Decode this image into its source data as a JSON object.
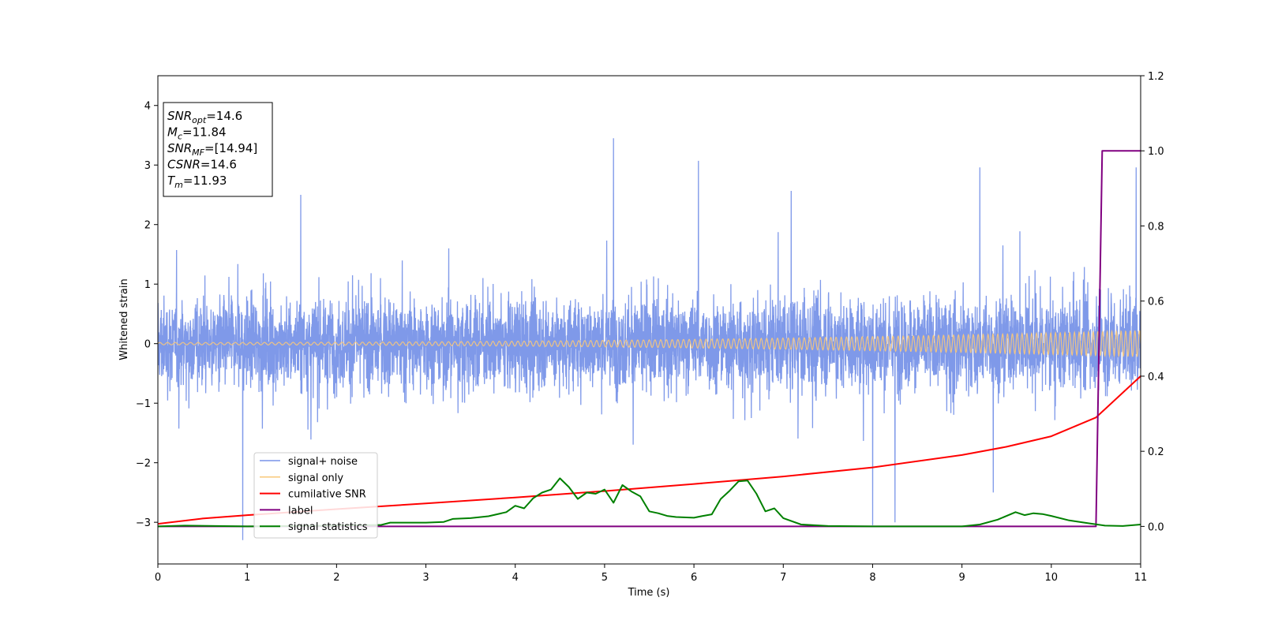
{
  "chart_data": {
    "type": "line",
    "title": "",
    "xlabel": "Time (s)",
    "ylabel": "Whitened strain",
    "y2label": "",
    "xlim": [
      0,
      11
    ],
    "ylim": [
      -3.7,
      4.5
    ],
    "y2lim": [
      -0.1,
      1.2
    ],
    "xticks": [
      0,
      1,
      2,
      3,
      4,
      5,
      6,
      7,
      8,
      9,
      10,
      11
    ],
    "xtick_labels": [
      "0",
      "1",
      "2",
      "3",
      "4",
      "5",
      "6",
      "7",
      "8",
      "9",
      "10",
      "11"
    ],
    "yticks": [
      -3,
      -2,
      -1,
      0,
      1,
      2,
      3,
      4
    ],
    "ytick_labels": [
      "−3",
      "−2",
      "−1",
      "0",
      "1",
      "2",
      "3",
      "4"
    ],
    "y2ticks": [
      0.0,
      0.2,
      0.4,
      0.6,
      0.8,
      1.0,
      1.2
    ],
    "y2tick_labels": [
      "0.0",
      "0.2",
      "0.4",
      "0.6",
      "0.8",
      "1.0",
      "1.2"
    ],
    "grid": false,
    "legend_position": "lower-left",
    "info_box": [
      {
        "base": "SNR",
        "sub": "opt",
        "rest": "=14.6"
      },
      {
        "base": "M",
        "sub": "c",
        "rest": "=11.84"
      },
      {
        "base": "SNR",
        "sub": "MF",
        "rest": "=[14.94]"
      },
      {
        "base": "CSNR",
        "sub": "",
        "rest": "=14.6"
      },
      {
        "base": "T",
        "sub": "m",
        "rest": "=11.93"
      }
    ],
    "series": [
      {
        "name": "signal+ noise",
        "color": "#7893e8",
        "axis": "left",
        "kind": "noise",
        "noise_std": 0.75,
        "spikes": [
          [
            0.95,
            -3.3
          ],
          [
            5.1,
            3.45
          ],
          [
            6.05,
            3.07
          ],
          [
            8.0,
            -3.05
          ],
          [
            8.25,
            -3.0
          ],
          [
            9.2,
            2.96
          ],
          [
            10.95,
            2.96
          ],
          [
            9.35,
            -2.5
          ],
          [
            1.6,
            2.5
          ]
        ]
      },
      {
        "name": "signal only",
        "color": "#f9c87a",
        "axis": "left",
        "kind": "chirp",
        "amplitude_start": 0.02,
        "amplitude_end": 0.22,
        "cycles_start_per_s": 11.5,
        "cycles_end_per_s": 15.5
      },
      {
        "name": "cumilative SNR",
        "color": "#ff0000",
        "axis": "right",
        "x": [
          0,
          0.5,
          1,
          2,
          3,
          4,
          5,
          6,
          7,
          8,
          9,
          9.5,
          10,
          10.5,
          11
        ],
        "y": [
          0.007,
          0.021,
          0.03,
          0.046,
          0.061,
          0.077,
          0.094,
          0.113,
          0.133,
          0.157,
          0.19,
          0.212,
          0.24,
          0.29,
          0.4
        ]
      },
      {
        "name": "label",
        "color": "#800080",
        "axis": "right",
        "x": [
          0,
          10.5,
          10.57,
          11
        ],
        "y": [
          0.0,
          0.0,
          1.0,
          1.0
        ]
      },
      {
        "name": "signal statistics",
        "color": "#008000",
        "axis": "right",
        "x": [
          0,
          0.3,
          1,
          1.5,
          2,
          2.5,
          2.6,
          3,
          3.2,
          3.3,
          3.5,
          3.7,
          3.9,
          4.0,
          4.1,
          4.2,
          4.3,
          4.4,
          4.5,
          4.6,
          4.7,
          4.8,
          4.9,
          5.0,
          5.1,
          5.2,
          5.3,
          5.4,
          5.5,
          5.6,
          5.7,
          5.8,
          6.0,
          6.1,
          6.2,
          6.3,
          6.4,
          6.5,
          6.6,
          6.7,
          6.8,
          6.9,
          7.0,
          7.2,
          7.5,
          8.0,
          8.5,
          9.0,
          9.2,
          9.4,
          9.6,
          9.7,
          9.8,
          9.9,
          10.0,
          10.2,
          10.4,
          10.6,
          10.8,
          11.0
        ],
        "y": [
          0.0,
          0.002,
          0.0,
          0.001,
          0.002,
          0.004,
          0.01,
          0.01,
          0.012,
          0.02,
          0.022,
          0.027,
          0.038,
          0.055,
          0.048,
          0.075,
          0.09,
          0.098,
          0.128,
          0.105,
          0.073,
          0.09,
          0.087,
          0.098,
          0.063,
          0.11,
          0.093,
          0.08,
          0.04,
          0.035,
          0.028,
          0.025,
          0.023,
          0.028,
          0.032,
          0.073,
          0.095,
          0.12,
          0.122,
          0.087,
          0.04,
          0.048,
          0.022,
          0.005,
          0.001,
          0.0,
          0.0,
          0.0,
          0.005,
          0.018,
          0.038,
          0.03,
          0.035,
          0.033,
          0.028,
          0.016,
          0.009,
          0.002,
          0.001,
          0.005
        ]
      }
    ]
  }
}
